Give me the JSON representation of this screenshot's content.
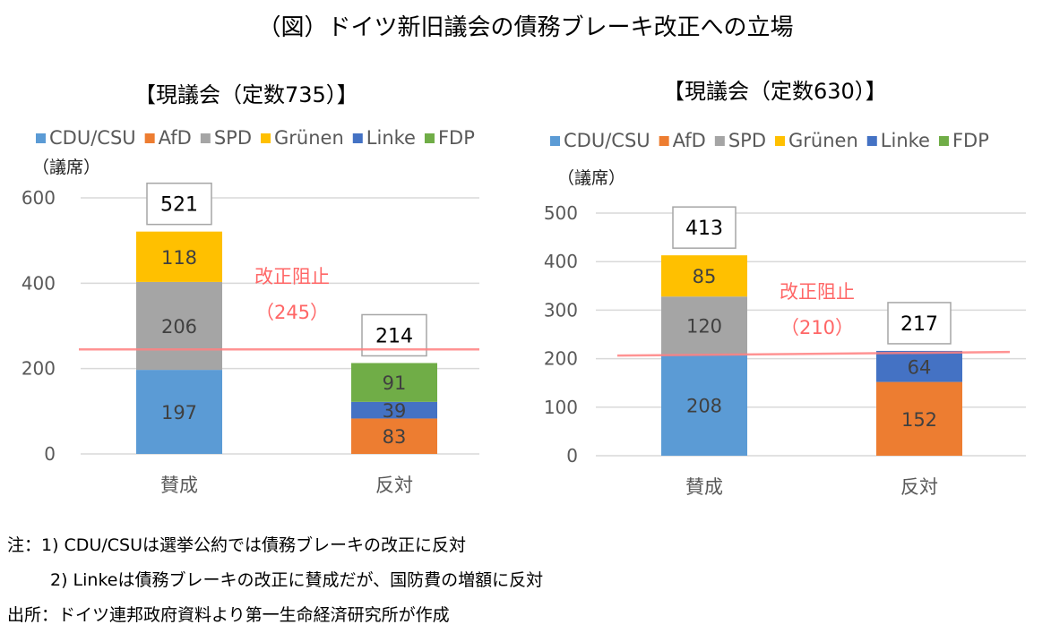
{
  "title": "（図）ドイツ新旧議会の債務ブレーキ改正への立場",
  "notes": [
    "注：1) CDU/CSUは選挙公約では債務ブレーキの改正に反対",
    "2) Linkeは債務ブレーキの改正に賛成だが、国防費の増額に反対",
    "出所：ドイツ連邦政府資料より第一生命経済研究所が作成"
  ],
  "colors": {
    "CDU/CSU": "#5b9bd5",
    "AfD": "#ed7d31",
    "SPD": "#a5a5a5",
    "Grünen": "#ffc000",
    "Linke": "#4472c4",
    "FDP": "#70ad47",
    "threshold": "#ff8080",
    "threshold_text": "#ff6666"
  },
  "chart_data": [
    {
      "type": "bar",
      "stacked": true,
      "title": "【現議会（定数735）】",
      "ylabel": "（議席）",
      "legend": [
        "CDU/CSU",
        "AfD",
        "SPD",
        "Grünen",
        "Linke",
        "FDP"
      ],
      "legend_position": "top",
      "categories": [
        "賛成",
        "反対"
      ],
      "ylim": [
        0,
        600
      ],
      "yticks": [
        0,
        200,
        400,
        600
      ],
      "series": [
        {
          "name": "CDU/CSU",
          "values": [
            197,
            0
          ]
        },
        {
          "name": "AfD",
          "values": [
            0,
            83
          ]
        },
        {
          "name": "SPD",
          "values": [
            206,
            0
          ]
        },
        {
          "name": "Grünen",
          "values": [
            118,
            0
          ]
        },
        {
          "name": "Linke",
          "values": [
            0,
            39
          ]
        },
        {
          "name": "FDP",
          "values": [
            0,
            91
          ]
        }
      ],
      "totals": [
        521,
        214
      ],
      "threshold": {
        "value": 245,
        "label": "改正阻止",
        "label2": "（245）"
      },
      "grid": true
    },
    {
      "type": "bar",
      "stacked": true,
      "title": "【現議会（定数630）】",
      "ylabel": "（議席）",
      "legend": [
        "CDU/CSU",
        "AfD",
        "SPD",
        "Grünen",
        "Linke",
        "FDP"
      ],
      "legend_position": "top",
      "categories": [
        "賛成",
        "反対"
      ],
      "ylim": [
        0,
        500
      ],
      "yticks": [
        0,
        100,
        200,
        300,
        400,
        500
      ],
      "series": [
        {
          "name": "CDU/CSU",
          "values": [
            208,
            0
          ]
        },
        {
          "name": "AfD",
          "values": [
            0,
            152
          ]
        },
        {
          "name": "SPD",
          "values": [
            120,
            0
          ]
        },
        {
          "name": "Grünen",
          "values": [
            85,
            0
          ]
        },
        {
          "name": "Linke",
          "values": [
            0,
            64
          ]
        },
        {
          "name": "FDP",
          "values": [
            0,
            0
          ]
        }
      ],
      "totals": [
        413,
        217
      ],
      "threshold": {
        "value": 210,
        "label": "改正阻止",
        "label2": "（210）"
      },
      "grid": true
    }
  ]
}
